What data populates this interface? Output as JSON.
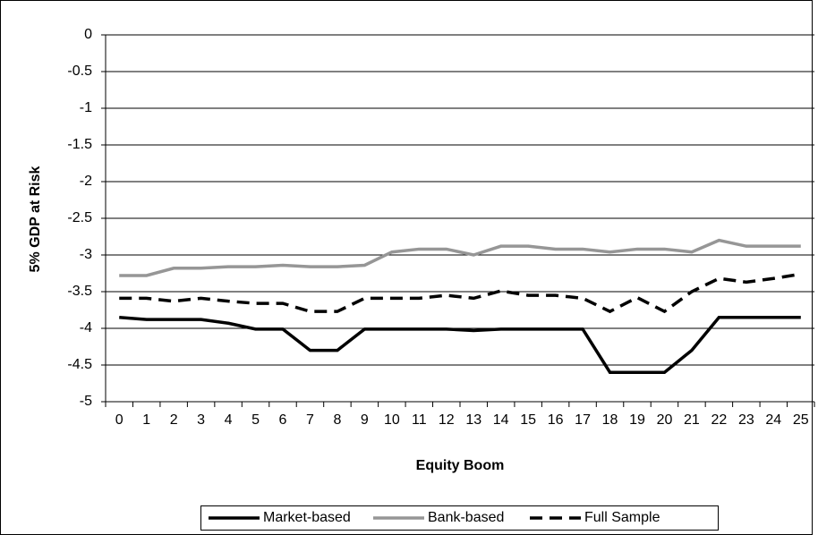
{
  "chart_data": {
    "type": "line",
    "x_label": "Equity Boom",
    "y_label": "5% GDP at Risk",
    "categories": [
      "0",
      "1",
      "2",
      "3",
      "4",
      "5",
      "6",
      "7",
      "8",
      "9",
      "10",
      "11",
      "12",
      "13",
      "14",
      "15",
      "16",
      "17",
      "18",
      "19",
      "20",
      "21",
      "22",
      "23",
      "24",
      "25"
    ],
    "ylim": [
      -5,
      0
    ],
    "yticks": [
      0,
      -0.5,
      -1,
      -1.5,
      -2,
      -2.5,
      -3,
      -3.5,
      -4,
      -4.5,
      -5
    ],
    "grid": true,
    "legend": "bottom",
    "series": [
      {
        "name": "Market-based",
        "color": "#000000",
        "dash": "solid",
        "values": [
          -3.85,
          -3.88,
          -3.88,
          -3.88,
          -3.93,
          -4.01,
          -4.01,
          -4.3,
          -4.3,
          -4.01,
          -4.01,
          -4.01,
          -4.01,
          -4.03,
          -4.01,
          -4.01,
          -4.01,
          -4.01,
          -4.6,
          -4.6,
          -4.6,
          -4.3,
          -3.85,
          -3.85,
          -3.85,
          -3.85
        ]
      },
      {
        "name": "Bank-based",
        "color": "#969696",
        "dash": "solid",
        "values": [
          -3.28,
          -3.28,
          -3.18,
          -3.18,
          -3.16,
          -3.16,
          -3.14,
          -3.16,
          -3.16,
          -3.14,
          -2.96,
          -2.92,
          -2.92,
          -3.0,
          -2.88,
          -2.88,
          -2.92,
          -2.92,
          -2.96,
          -2.92,
          -2.92,
          -2.96,
          -2.8,
          -2.88,
          -2.88,
          -2.88
        ]
      },
      {
        "name": "Full Sample",
        "color": "#000000",
        "dash": "dashed",
        "values": [
          -3.59,
          -3.59,
          -3.63,
          -3.59,
          -3.63,
          -3.66,
          -3.66,
          -3.77,
          -3.77,
          -3.59,
          -3.59,
          -3.59,
          -3.55,
          -3.59,
          -3.49,
          -3.55,
          -3.55,
          -3.59,
          -3.77,
          -3.58,
          -3.77,
          -3.5,
          -3.32,
          -3.37,
          -3.32,
          -3.26
        ]
      }
    ]
  }
}
